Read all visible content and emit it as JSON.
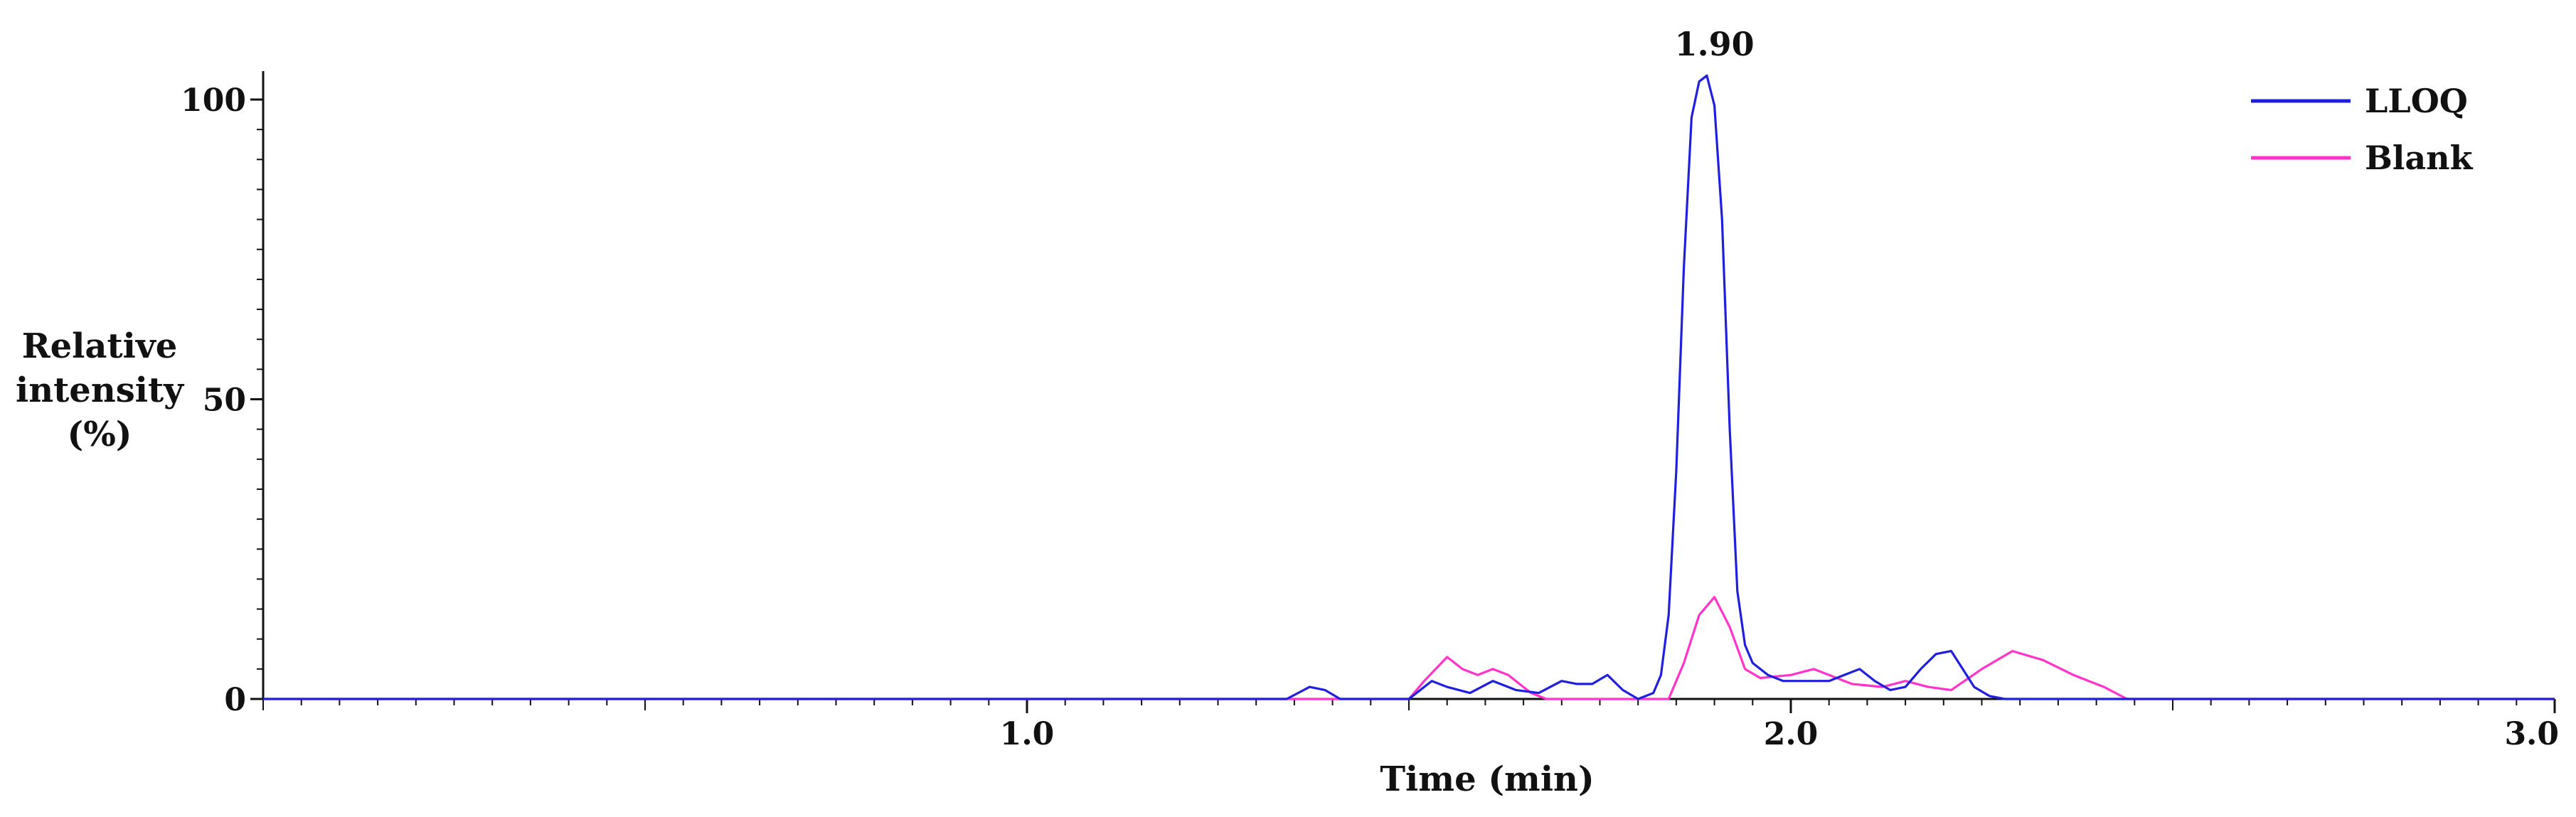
{
  "chart_data": {
    "type": "line",
    "xlabel": "Time (min)",
    "ylabel_lines": [
      "Relative",
      "intensity",
      "(%)"
    ],
    "xlim": [
      0.0,
      3.0
    ],
    "ylim": [
      0,
      100
    ],
    "x_ticks": [
      {
        "value": 1.0,
        "label": "1.0"
      },
      {
        "value": 2.0,
        "label": "2.0"
      },
      {
        "value": 3.0,
        "label": "3.0"
      }
    ],
    "y_ticks": [
      {
        "value": 0,
        "label": "0"
      },
      {
        "value": 50,
        "label": "50"
      },
      {
        "value": 100,
        "label": "100"
      }
    ],
    "grid": false,
    "legend_position": "top-right",
    "annotations": [
      {
        "text": "1.90",
        "x": 1.9,
        "y": 104
      }
    ],
    "series": [
      {
        "name": "LLOQ",
        "color": "#1f1fe0",
        "x": [
          0.0,
          1.34,
          1.37,
          1.39,
          1.41,
          1.5,
          1.53,
          1.55,
          1.58,
          1.61,
          1.64,
          1.67,
          1.7,
          1.72,
          1.74,
          1.76,
          1.78,
          1.8,
          1.82,
          1.83,
          1.84,
          1.85,
          1.86,
          1.87,
          1.88,
          1.89,
          1.9,
          1.91,
          1.92,
          1.93,
          1.94,
          1.95,
          1.97,
          1.99,
          2.02,
          2.05,
          2.07,
          2.09,
          2.11,
          2.13,
          2.15,
          2.17,
          2.19,
          2.21,
          2.22,
          2.24,
          2.26,
          2.28,
          3.0
        ],
        "y": [
          0,
          0,
          2,
          1.5,
          0,
          0,
          3,
          2,
          1,
          3,
          1.5,
          1,
          3,
          2.5,
          2.5,
          4,
          1.5,
          0,
          1,
          4,
          14,
          38,
          72,
          97,
          103,
          104,
          99,
          80,
          45,
          18,
          9,
          6,
          4,
          3,
          3,
          3,
          4,
          5,
          3,
          1.5,
          2,
          5,
          7.5,
          8,
          6,
          2,
          0.5,
          0,
          0
        ]
      },
      {
        "name": "Blank",
        "color": "#ff33cc",
        "x": [
          0.0,
          1.5,
          1.52,
          1.55,
          1.57,
          1.59,
          1.61,
          1.63,
          1.66,
          1.68,
          1.84,
          1.86,
          1.88,
          1.9,
          1.92,
          1.94,
          1.96,
          2.0,
          2.03,
          2.05,
          2.08,
          2.12,
          2.15,
          2.18,
          2.21,
          2.25,
          2.29,
          2.33,
          2.37,
          2.41,
          2.44,
          3.0
        ],
        "y": [
          0,
          0,
          3,
          7,
          5,
          4,
          5,
          4,
          1,
          0,
          0,
          6,
          14,
          17,
          12,
          5,
          3.5,
          4,
          5,
          4,
          2.5,
          2,
          3,
          2,
          1.5,
          5,
          8,
          6.5,
          4,
          2,
          0,
          0
        ]
      }
    ]
  }
}
